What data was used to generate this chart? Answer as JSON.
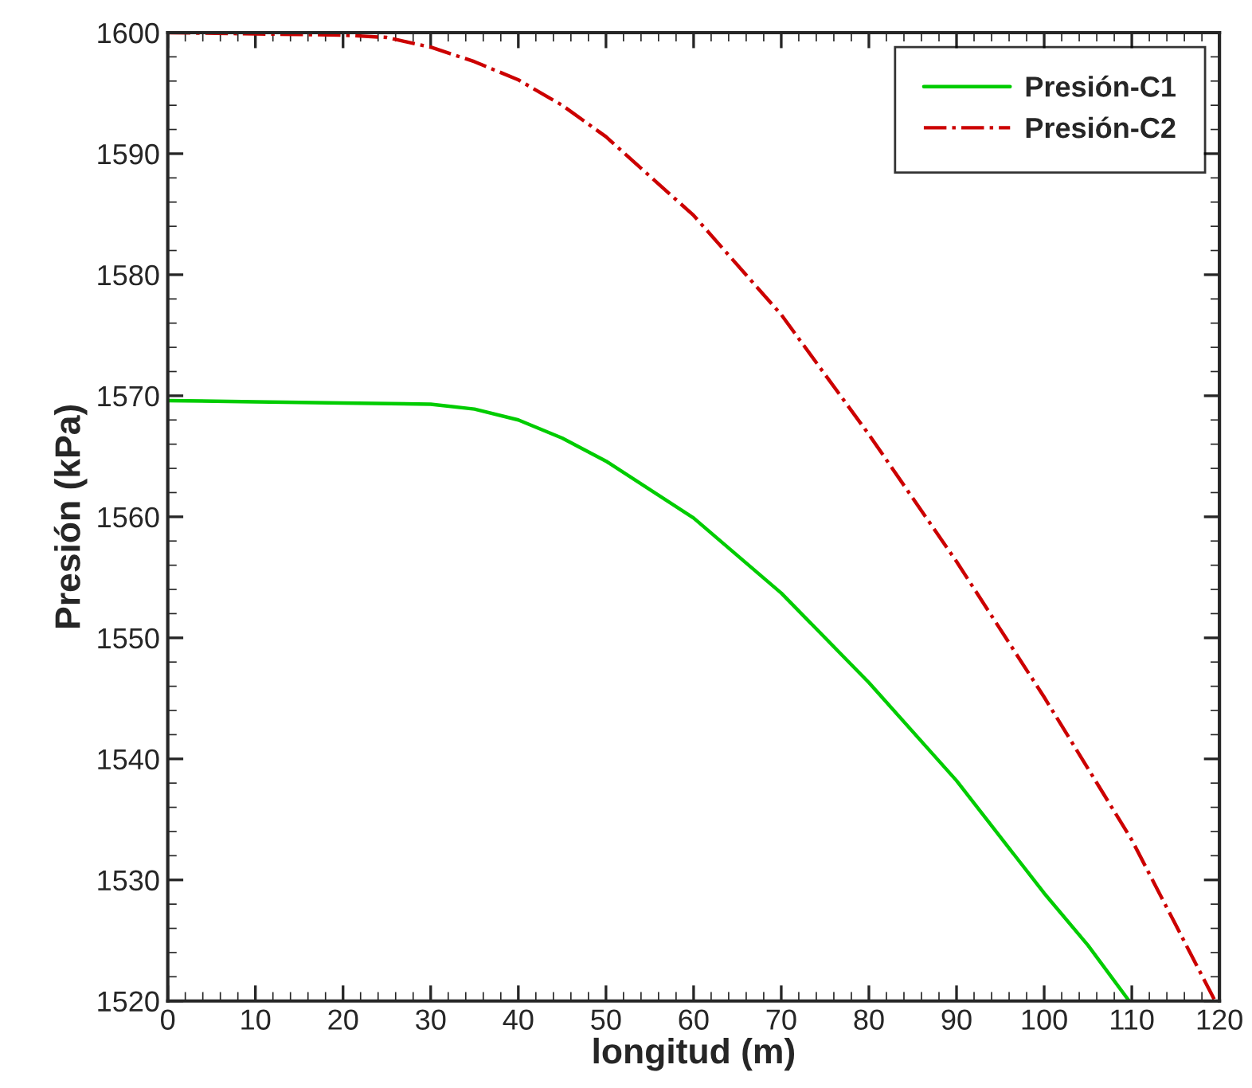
{
  "chart_data": {
    "type": "line",
    "xlabel": "longitud (m)",
    "ylabel": "Presión (kPa)",
    "xlim": [
      0,
      120
    ],
    "xticks": [
      0,
      10,
      20,
      30,
      40,
      50,
      60,
      70,
      80,
      90,
      100,
      110,
      120
    ],
    "ylim": [
      1520,
      1600
    ],
    "yticks": [
      1520,
      1530,
      1540,
      1550,
      1560,
      1570,
      1580,
      1590,
      1600
    ],
    "grid": false,
    "legend": "top right",
    "series": [
      {
        "name": "Presión-C1",
        "color": "#00cc00",
        "line_style": "solid",
        "x": [
          0,
          10,
          20,
          30,
          35,
          40,
          45,
          50,
          60,
          70,
          80,
          90,
          100,
          105,
          109.7
        ],
        "values": [
          1569.6,
          1569.5,
          1569.4,
          1569.3,
          1568.9,
          1568.0,
          1566.5,
          1564.6,
          1559.9,
          1553.7,
          1546.3,
          1538.2,
          1528.9,
          1524.6,
          1520
        ]
      },
      {
        "name": "Presión-C2",
        "color": "#cc0000",
        "line_style": "dashdot",
        "x": [
          0,
          10,
          20,
          25,
          30,
          35,
          40,
          45,
          50,
          60,
          70,
          80,
          90,
          100,
          110,
          119.5
        ],
        "values": [
          1600,
          1599.9,
          1599.8,
          1599.6,
          1598.8,
          1597.6,
          1596.1,
          1594.0,
          1591.4,
          1584.9,
          1576.7,
          1566.8,
          1556.3,
          1545.1,
          1533.3,
          1520
        ]
      }
    ]
  }
}
